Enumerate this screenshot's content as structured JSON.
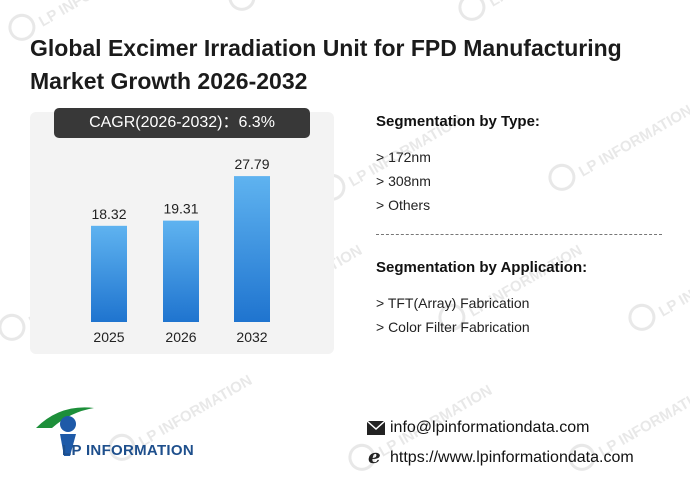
{
  "title": "Global Excimer Irradiation Unit for FPD Manufacturing Market Growth 2026-2032",
  "cagr_label": "CAGR(2026-2032)：6.3%",
  "chart_data": {
    "type": "bar",
    "categories": [
      "2025",
      "2026",
      "2032"
    ],
    "values": [
      18.32,
      19.31,
      27.79
    ],
    "value_labels": [
      "18.32",
      "19.31",
      "27.79"
    ],
    "ylim": [
      0,
      40
    ],
    "grid": false,
    "colors": {
      "bar_top": "#5fb3f0",
      "bar_bottom": "#1f74cf"
    }
  },
  "segmentation_type": {
    "title": "Segmentation by Type:",
    "items": [
      "> 172nm",
      "> 308nm",
      "> Others"
    ]
  },
  "segmentation_application": {
    "title": "Segmentation by Application:",
    "items": [
      "> TFT(Array) Fabrication",
      "> Color Filter Fabrication"
    ]
  },
  "logo": {
    "text": "LP INFORMATION",
    "icon": "lp-information-logo"
  },
  "contact": {
    "email": "info@lpinformationdata.com",
    "website": "https://www.lpinformationdata.com",
    "email_icon": "envelope-icon",
    "web_icon": "browser-e-icon"
  },
  "watermark": "LP INFORMATION"
}
